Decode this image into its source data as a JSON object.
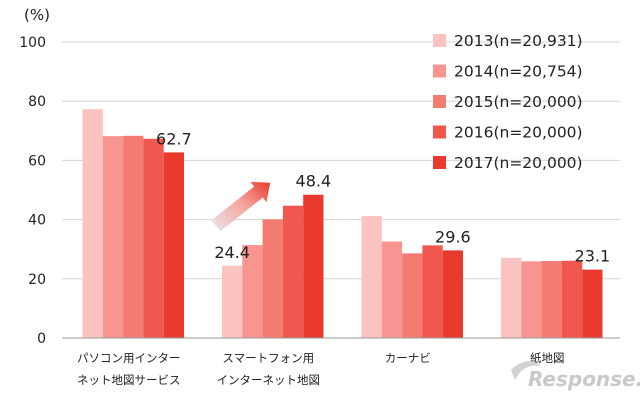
{
  "chart_data": {
    "type": "bar",
    "unit_label": "(%)",
    "ylim": [
      0,
      100
    ],
    "yticks": [
      0,
      20,
      40,
      60,
      80,
      100
    ],
    "grid": true,
    "legend_position": "top-right",
    "categories": [
      [
        "パソコン用インター",
        "ネット地図サービス"
      ],
      [
        "スマートフォン用",
        "インターネット地図"
      ],
      [
        "カーナビ"
      ],
      [
        "紙地図"
      ]
    ],
    "series": [
      {
        "name": "2013(n=20,931)",
        "color": "#fbc3c0",
        "values": [
          77.3,
          24.4,
          41.2,
          27.1
        ]
      },
      {
        "name": "2014(n=20,754)",
        "color": "#f89591",
        "values": [
          68.2,
          31.4,
          32.6,
          25.9
        ]
      },
      {
        "name": "2015(n=20,000)",
        "color": "#f47b72",
        "values": [
          68.3,
          40.1,
          28.6,
          26.0
        ]
      },
      {
        "name": "2016(n=20,000)",
        "color": "#f0584f",
        "values": [
          67.3,
          44.7,
          31.3,
          26.1
        ]
      },
      {
        "name": "2017(n=20,000)",
        "color": "#ea3a2d",
        "values": [
          62.7,
          48.4,
          29.6,
          23.1
        ]
      }
    ],
    "data_labels": [
      {
        "category": 0,
        "series": 4,
        "text": "62.7"
      },
      {
        "category": 1,
        "series": 0,
        "text": "24.4"
      },
      {
        "category": 1,
        "series": 4,
        "text": "48.4"
      },
      {
        "category": 2,
        "series": 4,
        "text": "29.6"
      },
      {
        "category": 3,
        "series": 4,
        "text": "23.1"
      }
    ],
    "trend_arrow": {
      "category": 1,
      "from_series": 0,
      "to_series": 4
    }
  },
  "watermark": {
    "text": "Response."
  }
}
